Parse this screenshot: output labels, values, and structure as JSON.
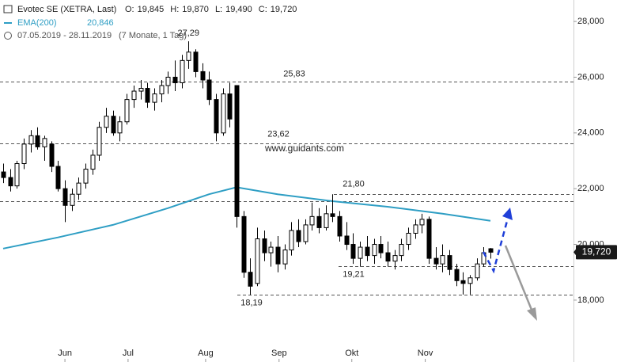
{
  "chart_data": {
    "type": "candlestick",
    "header": {
      "title": "Evotec SE (XETRA, Last)",
      "quotes": [
        {
          "label": "O:",
          "value": "19,845"
        },
        {
          "label": "H:",
          "value": "19,870"
        },
        {
          "label": "L:",
          "value": "19,490"
        },
        {
          "label": "C:",
          "value": "19,720"
        }
      ],
      "indicator": "EMA(200)",
      "indicator_value": "20,846",
      "range": "07.05.2019 - 28.11.2019",
      "period": "(7 Monate, 1 Tag)"
    },
    "watermark": "www.guidants.com",
    "up_color": "#ffffff",
    "down_color": "#000000",
    "ema_color": "#2e9ec4",
    "ylim": [
      15.78,
      28.77
    ],
    "yticks": [
      {
        "value": 18,
        "label": "18,000"
      },
      {
        "value": 20,
        "label": "20,000"
      },
      {
        "value": 22,
        "label": "22,000"
      },
      {
        "value": 24,
        "label": "24,000"
      },
      {
        "value": 26,
        "label": "26,000"
      },
      {
        "value": 28,
        "label": "28,000"
      }
    ],
    "xlim": [
      -0.46,
      83.1
    ],
    "xticks": [
      {
        "value": 9,
        "label": "Jun"
      },
      {
        "value": 18.2,
        "label": "Jul"
      },
      {
        "value": 29.5,
        "label": "Aug"
      },
      {
        "value": 40.2,
        "label": "Sep"
      },
      {
        "value": 50.8,
        "label": "Okt"
      },
      {
        "value": 61.5,
        "label": "Nov"
      }
    ],
    "levels": [
      {
        "value": 25.83,
        "label": "25,83"
      },
      {
        "value": 23.62,
        "label": "23,62"
      },
      {
        "value": 21.8,
        "label": "21,80"
      },
      21.55,
      {
        "value": 19.21,
        "label": "19,21"
      },
      {
        "value": 18.19,
        "label": "18,19"
      }
    ],
    "annotations": [
      {
        "value": 27.29,
        "label": "27,29"
      }
    ],
    "last_value": 19.72,
    "candles": [
      [
        22.6,
        22.9,
        22.2,
        22.4
      ],
      [
        22.4,
        22.7,
        21.9,
        22.1
      ],
      [
        22.1,
        23.0,
        22.0,
        22.9
      ],
      [
        22.9,
        23.8,
        22.7,
        23.6
      ],
      [
        23.6,
        24.1,
        23.3,
        23.9
      ],
      [
        23.9,
        24.2,
        23.4,
        23.5
      ],
      [
        23.5,
        23.9,
        23.0,
        23.8
      ],
      [
        23.6,
        23.7,
        22.6,
        22.8
      ],
      [
        22.8,
        23.0,
        21.9,
        22.0
      ],
      [
        22.0,
        22.3,
        20.8,
        21.4
      ],
      [
        21.4,
        22.0,
        21.2,
        21.8
      ],
      [
        21.8,
        22.4,
        21.6,
        22.2
      ],
      [
        22.2,
        22.9,
        22.0,
        22.7
      ],
      [
        22.7,
        23.4,
        22.5,
        23.2
      ],
      [
        23.2,
        24.4,
        23.0,
        24.2
      ],
      [
        24.2,
        24.9,
        24.0,
        24.6
      ],
      [
        24.6,
        24.8,
        23.9,
        24.0
      ],
      [
        24.0,
        24.6,
        23.7,
        24.4
      ],
      [
        24.4,
        25.4,
        24.3,
        25.2
      ],
      [
        25.2,
        25.7,
        24.9,
        25.5
      ],
      [
        25.5,
        25.9,
        25.2,
        25.6
      ],
      [
        25.6,
        25.8,
        24.9,
        25.1
      ],
      [
        25.1,
        25.6,
        24.8,
        25.4
      ],
      [
        25.4,
        25.9,
        25.1,
        25.7
      ],
      [
        25.7,
        26.2,
        25.4,
        26.0
      ],
      [
        26.0,
        26.6,
        25.5,
        25.8
      ],
      [
        25.8,
        26.8,
        25.6,
        26.6
      ],
      [
        26.6,
        27.29,
        26.3,
        26.9
      ],
      [
        26.9,
        27.0,
        26.0,
        26.2
      ],
      [
        26.2,
        26.5,
        25.6,
        25.9
      ],
      [
        25.9,
        26.2,
        25.0,
        25.2
      ],
      [
        25.2,
        25.4,
        23.7,
        24.0
      ],
      [
        24.0,
        25.6,
        23.9,
        25.4
      ],
      [
        25.4,
        25.8,
        24.2,
        24.5
      ],
      [
        25.7,
        25.7,
        20.6,
        21.0
      ],
      [
        21.0,
        21.2,
        18.8,
        19.0
      ],
      [
        19.0,
        19.5,
        18.19,
        18.5
      ],
      [
        18.6,
        20.6,
        18.5,
        20.2
      ],
      [
        20.2,
        20.5,
        19.4,
        19.7
      ],
      [
        19.7,
        20.1,
        19.2,
        19.9
      ],
      [
        19.9,
        20.3,
        19.0,
        19.3
      ],
      [
        19.3,
        20.0,
        19.1,
        19.8
      ],
      [
        19.8,
        20.8,
        19.6,
        20.5
      ],
      [
        20.5,
        20.9,
        19.9,
        20.1
      ],
      [
        20.1,
        20.9,
        20.0,
        20.7
      ],
      [
        20.7,
        21.5,
        20.5,
        21.0
      ],
      [
        21.0,
        21.3,
        20.4,
        20.6
      ],
      [
        20.6,
        21.4,
        20.5,
        21.1
      ],
      [
        21.1,
        21.8,
        20.8,
        21.0
      ],
      [
        21.0,
        21.2,
        20.1,
        20.3
      ],
      [
        20.3,
        20.8,
        19.8,
        20.0
      ],
      [
        20.0,
        20.4,
        19.3,
        19.5
      ],
      [
        19.5,
        20.1,
        19.2,
        19.9
      ],
      [
        19.9,
        20.3,
        19.4,
        19.6
      ],
      [
        19.6,
        20.2,
        19.3,
        20.0
      ],
      [
        20.0,
        20.3,
        19.5,
        19.7
      ],
      [
        19.7,
        20.1,
        19.2,
        19.4
      ],
      [
        19.4,
        19.8,
        19.1,
        19.6
      ],
      [
        19.6,
        20.2,
        19.4,
        20.0
      ],
      [
        20.0,
        20.6,
        19.8,
        20.4
      ],
      [
        20.4,
        20.9,
        20.2,
        20.7
      ],
      [
        20.7,
        21.1,
        20.4,
        20.9
      ],
      [
        20.9,
        21.0,
        19.3,
        19.5
      ],
      [
        19.5,
        19.9,
        19.1,
        19.3
      ],
      [
        19.3,
        20.0,
        19.0,
        19.6
      ],
      [
        19.6,
        19.8,
        18.9,
        19.1
      ],
      [
        19.1,
        19.3,
        18.5,
        18.7
      ],
      [
        18.7,
        19.0,
        18.2,
        18.6
      ],
      [
        18.6,
        18.9,
        18.2,
        18.8
      ],
      [
        18.8,
        19.5,
        18.7,
        19.3
      ],
      [
        19.3,
        19.9,
        19.2,
        19.7
      ],
      [
        19.845,
        19.87,
        19.49,
        19.72
      ]
    ],
    "ema": {
      "x": [
        0,
        8,
        16,
        24,
        30,
        34,
        40,
        48,
        56,
        64,
        71
      ],
      "values": [
        19.85,
        20.25,
        20.7,
        21.3,
        21.8,
        22.05,
        21.8,
        21.55,
        21.35,
        21.1,
        20.846
      ]
    }
  }
}
